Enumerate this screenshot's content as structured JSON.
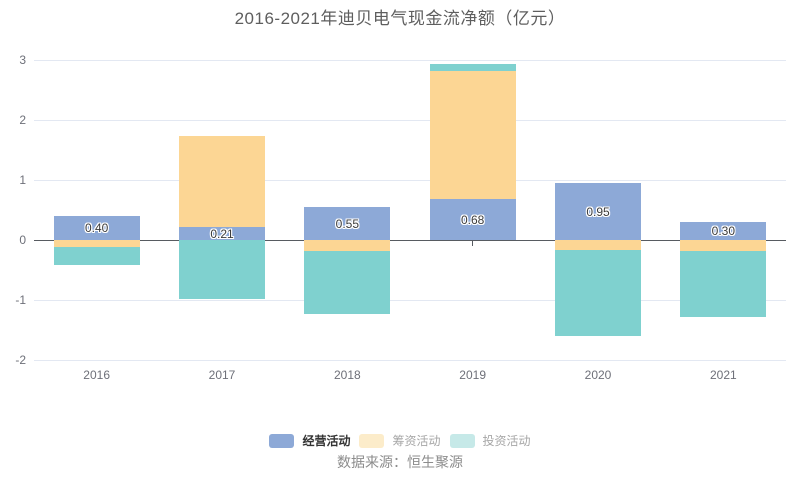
{
  "title": "2016-2021年迪贝电气现金流净额（亿元）",
  "source": "数据来源：恒生聚源",
  "colors": {
    "background": "#ffffff",
    "title_text": "#5e5e5e",
    "axis_text": "#6e7079",
    "gridline": "#e3e8f2",
    "zero_line": "#575b61",
    "bar_label_text": "#3b3b3b"
  },
  "chart_data": {
    "type": "bar",
    "stacked": true,
    "grid": true,
    "legend_position": "bottom",
    "categories": [
      "2016",
      "2017",
      "2018",
      "2019",
      "2020",
      "2021"
    ],
    "series": [
      {
        "key": "operating",
        "name": "经营活动",
        "color": "#8da9d7",
        "values": [
          0.4,
          0.21,
          0.55,
          0.68,
          0.95,
          0.3
        ],
        "labels": [
          "0.40",
          "0.21",
          "0.55",
          "0.68",
          "0.95",
          "0.30"
        ],
        "show_labels": true,
        "legend_swatch": "#8da9d7",
        "legend_text_color": "#333333",
        "legend_bold": true
      },
      {
        "key": "financing",
        "name": "筹资活动",
        "color": "#fcd694",
        "values": [
          -0.12,
          1.52,
          -0.18,
          2.14,
          -0.17,
          -0.18
        ],
        "show_labels": false,
        "legend_swatch": "#fcecca",
        "legend_text_color": "#a6a6a6",
        "legend_bold": false
      },
      {
        "key": "investing",
        "name": "投资活动",
        "color": "#7fd1cf",
        "values": [
          -0.3,
          -0.98,
          -1.05,
          0.11,
          -1.43,
          -1.11
        ],
        "show_labels": false,
        "legend_swatch": "#c6e9e8",
        "legend_text_color": "#a6a6a6",
        "legend_bold": false
      }
    ],
    "yticks": [
      3,
      2,
      1,
      0,
      -1,
      -2
    ],
    "ylim": [
      -2,
      3
    ],
    "xlabel": "",
    "ylabel": ""
  }
}
